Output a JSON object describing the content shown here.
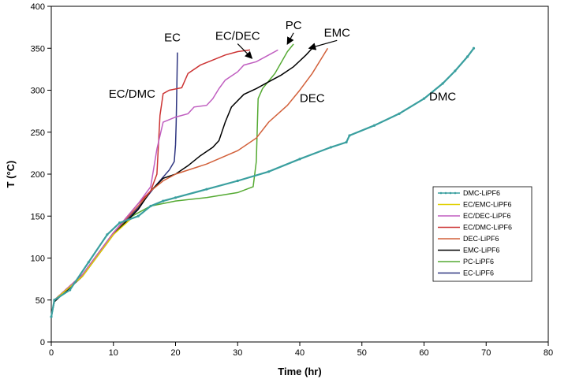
{
  "chart_data": {
    "type": "line",
    "title": "",
    "xlabel": "Time (hr)",
    "ylabel": "T (°C)",
    "xlim": [
      0,
      80
    ],
    "ylim": [
      0,
      400
    ],
    "xticks": [
      0,
      10,
      20,
      30,
      40,
      50,
      60,
      70,
      80
    ],
    "yticks": [
      0,
      50,
      100,
      150,
      200,
      250,
      300,
      350,
      400
    ],
    "grid": false,
    "legend_position": "right",
    "series": [
      {
        "name": "DMC-LiPF6",
        "color": "#3a9f9f",
        "marker": "dot",
        "points": [
          [
            0,
            30
          ],
          [
            0.5,
            50
          ],
          [
            3,
            62
          ],
          [
            6,
            95
          ],
          [
            9,
            128
          ],
          [
            11,
            142
          ],
          [
            14,
            150
          ],
          [
            16,
            162
          ],
          [
            18,
            168
          ],
          [
            20,
            172
          ],
          [
            25,
            182
          ],
          [
            30,
            192
          ],
          [
            35,
            203
          ],
          [
            40,
            218
          ],
          [
            45,
            232
          ],
          [
            47.5,
            238
          ],
          [
            48,
            246
          ],
          [
            52,
            258
          ],
          [
            56,
            272
          ],
          [
            60,
            290
          ],
          [
            63,
            308
          ],
          [
            65,
            323
          ],
          [
            67,
            340
          ],
          [
            68,
            350
          ]
        ]
      },
      {
        "name": "EC/EMC-LiPF6",
        "color": "#e0d000",
        "marker": "none",
        "points": [
          [
            0,
            30
          ],
          [
            0.5,
            50
          ],
          [
            5,
            78
          ],
          [
            10,
            128
          ],
          [
            13,
            148
          ]
        ]
      },
      {
        "name": "EC/DEC-LiPF6",
        "color": "#c05ec0",
        "marker": "none",
        "points": [
          [
            0,
            30
          ],
          [
            0.5,
            50
          ],
          [
            5,
            80
          ],
          [
            10,
            130
          ],
          [
            14,
            165
          ],
          [
            16,
            185
          ],
          [
            17,
            230
          ],
          [
            18,
            262
          ],
          [
            20,
            268
          ],
          [
            22,
            272
          ],
          [
            23,
            280
          ],
          [
            25,
            282
          ],
          [
            26,
            290
          ],
          [
            27,
            302
          ],
          [
            28,
            312
          ],
          [
            30,
            322
          ],
          [
            31,
            330
          ],
          [
            33,
            334
          ],
          [
            35,
            342
          ],
          [
            36.5,
            348
          ]
        ]
      },
      {
        "name": "EC/DMC-LiPF6",
        "color": "#cc3333",
        "marker": "none",
        "points": [
          [
            0,
            30
          ],
          [
            0.5,
            50
          ],
          [
            5,
            80
          ],
          [
            10,
            130
          ],
          [
            14,
            165
          ],
          [
            16,
            180
          ],
          [
            17,
            200
          ],
          [
            17.5,
            270
          ],
          [
            18,
            296
          ],
          [
            19,
            300
          ],
          [
            21,
            303
          ],
          [
            22,
            320
          ],
          [
            24,
            330
          ],
          [
            26,
            336
          ],
          [
            28,
            342
          ],
          [
            30,
            346
          ],
          [
            32,
            348
          ]
        ]
      },
      {
        "name": "DEC-LiPF6",
        "color": "#d2603a",
        "marker": "none",
        "points": [
          [
            0,
            30
          ],
          [
            0.5,
            50
          ],
          [
            5,
            80
          ],
          [
            10,
            130
          ],
          [
            14,
            162
          ],
          [
            16,
            180
          ],
          [
            18,
            192
          ],
          [
            20,
            200
          ],
          [
            25,
            212
          ],
          [
            30,
            228
          ],
          [
            33,
            243
          ],
          [
            35,
            262
          ],
          [
            38,
            282
          ],
          [
            40,
            300
          ],
          [
            42,
            320
          ],
          [
            43.5,
            338
          ],
          [
            44.5,
            350
          ]
        ]
      },
      {
        "name": "EMC-LiPF6",
        "color": "#000000",
        "marker": "none",
        "points": [
          [
            0,
            30
          ],
          [
            0.5,
            48
          ],
          [
            5,
            78
          ],
          [
            10,
            128
          ],
          [
            14,
            158
          ],
          [
            16,
            180
          ],
          [
            18,
            195
          ],
          [
            20,
            200
          ],
          [
            22,
            210
          ],
          [
            24,
            222
          ],
          [
            26,
            232
          ],
          [
            27,
            240
          ],
          [
            28,
            262
          ],
          [
            29,
            280
          ],
          [
            31,
            295
          ],
          [
            33,
            302
          ],
          [
            35,
            310
          ],
          [
            37,
            318
          ],
          [
            39,
            328
          ],
          [
            41,
            342
          ],
          [
            42,
            350
          ]
        ]
      },
      {
        "name": "PC-LiPF6",
        "color": "#55aa33",
        "marker": "none",
        "points": [
          [
            0,
            30
          ],
          [
            0.5,
            50
          ],
          [
            5,
            80
          ],
          [
            10,
            130
          ],
          [
            13,
            150
          ],
          [
            16,
            162
          ],
          [
            20,
            168
          ],
          [
            25,
            172
          ],
          [
            30,
            178
          ],
          [
            32.5,
            185
          ],
          [
            33,
            215
          ],
          [
            33.3,
            290
          ],
          [
            34,
            302
          ],
          [
            36,
            320
          ],
          [
            38,
            346
          ],
          [
            39,
            355
          ]
        ]
      },
      {
        "name": "EC-LiPF6",
        "color": "#2e3580",
        "marker": "none",
        "points": [
          [
            0,
            30
          ],
          [
            0.5,
            50
          ],
          [
            5,
            80
          ],
          [
            10,
            130
          ],
          [
            14,
            160
          ],
          [
            17,
            188
          ],
          [
            19,
            205
          ],
          [
            19.8,
            215
          ],
          [
            20,
            235
          ],
          [
            20.1,
            260
          ],
          [
            20.2,
            300
          ],
          [
            20.3,
            345
          ]
        ]
      }
    ],
    "annotations": [
      {
        "text": "EC",
        "x": 19.5,
        "y": 358,
        "arrow_to": null
      },
      {
        "text": "EC/DEC",
        "x": 30,
        "y": 360,
        "arrow_to": [
          32.3,
          338
        ]
      },
      {
        "text": "PC",
        "x": 39,
        "y": 373,
        "arrow_to": [
          38,
          355
        ]
      },
      {
        "text": "EMC",
        "x": 46,
        "y": 364,
        "arrow_to": [
          41.5,
          350
        ]
      },
      {
        "text": "EC/DMC",
        "x": 13,
        "y": 291,
        "arrow_to": null
      },
      {
        "text": "DEC",
        "x": 42,
        "y": 286,
        "arrow_to": null
      },
      {
        "text": "DMC",
        "x": 63,
        "y": 288,
        "arrow_to": null
      }
    ]
  }
}
